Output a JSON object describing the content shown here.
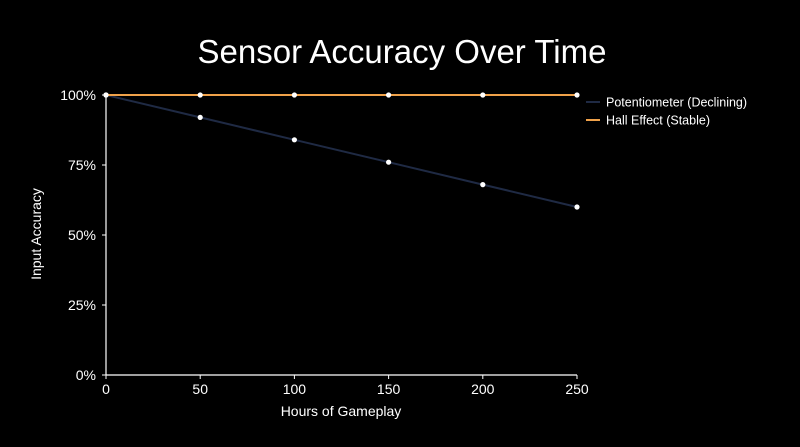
{
  "chart_data": {
    "type": "line",
    "title": "Sensor Accuracy Over Time",
    "xlabel": "Hours of Gameplay",
    "ylabel": "Input Accuracy",
    "x": [
      0,
      50,
      100,
      150,
      200,
      250
    ],
    "xlim": [
      0,
      250
    ],
    "ylim": [
      0,
      100
    ],
    "x_ticks": [
      "0",
      "50",
      "100",
      "150",
      "200",
      "250"
    ],
    "y_ticks": [
      "0%",
      "25%",
      "50%",
      "75%",
      "100%"
    ],
    "y_tick_values": [
      0,
      25,
      50,
      75,
      100
    ],
    "grid": false,
    "legend_position": "right",
    "series": [
      {
        "name": "Potentiometer (Declining)",
        "color": "#1f2a44",
        "values": [
          100,
          92,
          84,
          76,
          68,
          60
        ]
      },
      {
        "name": "Hall Effect (Stable)",
        "color": "#f0a24a",
        "values": [
          100,
          100,
          100,
          100,
          100,
          100
        ]
      }
    ],
    "marker_color": "#ffffff",
    "background": "#000000",
    "axis_color": "#ffffff"
  }
}
